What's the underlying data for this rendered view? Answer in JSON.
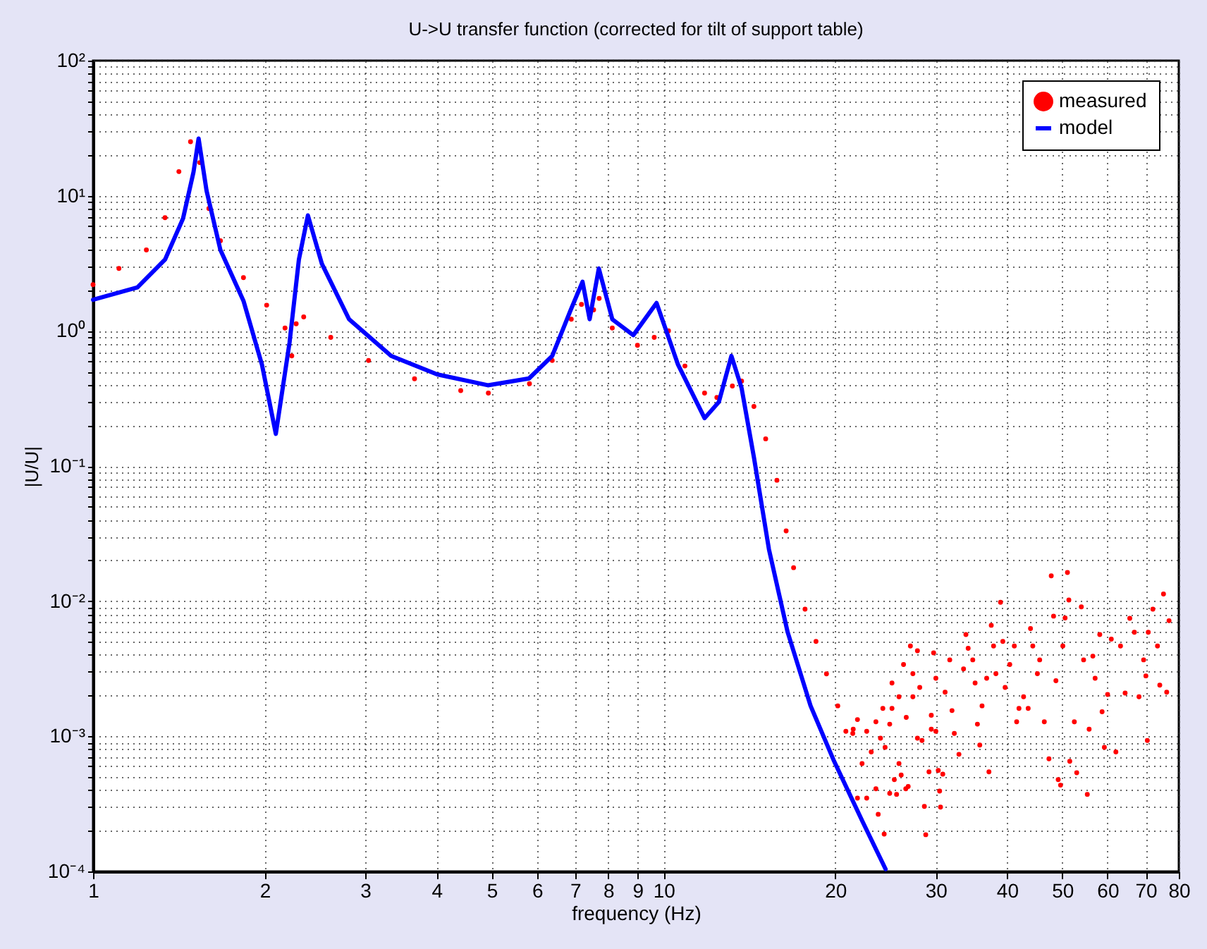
{
  "chart_data": {
    "type": "line",
    "title": "U->U transfer function (corrected for tilt of support table)",
    "xlabel": "frequency (Hz)",
    "ylabel": "|U/U|",
    "log": "xy",
    "grid": true,
    "legend": "top right",
    "xlim": [
      1,
      80
    ],
    "xticks": [
      1,
      2,
      3,
      4,
      5,
      6,
      7,
      8,
      9,
      10,
      20,
      30,
      40,
      50,
      60,
      70,
      80
    ],
    "ylim": [
      0.0001,
      100
    ],
    "yticks": [
      {
        "value": 0.0001,
        "label": "10⁻⁴"
      },
      {
        "value": 0.001,
        "label": "10⁻³"
      },
      {
        "value": 0.01,
        "label": "10⁻²"
      },
      {
        "value": 0.1,
        "label": "10⁻¹"
      },
      {
        "value": 1,
        "label": "10⁰"
      },
      {
        "value": 10,
        "label": "10¹"
      },
      {
        "value": 100,
        "label": "10²"
      }
    ],
    "series": [
      {
        "name": "measured",
        "type": "scatter",
        "marker": "circle",
        "color": "#ff0000",
        "x": [
          1.0,
          1.11,
          1.24,
          1.337,
          1.414,
          1.482,
          1.538,
          1.596,
          1.672,
          1.835,
          2.015,
          2.17,
          2.23,
          2.27,
          2.34,
          2.61,
          3.04,
          3.66,
          4.41,
          4.93,
          5.82,
          6.38,
          6.89,
          7.18,
          7.54,
          7.71,
          8.13,
          9.0,
          9.63,
          10.2,
          10.9,
          11.8,
          12.4,
          13.2,
          13.7,
          14.4,
          15.1,
          15.8,
          16.4,
          16.9,
          17.7,
          18.5,
          19.3,
          20.2,
          21.5,
          21.87,
          21.46,
          20.87,
          22.7,
          23.56,
          23.12,
          22.28,
          21.87,
          22.7,
          23.56,
          23.78,
          24.36,
          24.0,
          24.45,
          24.91,
          25.14,
          24.23,
          25.38,
          25.86,
          26.09,
          24.91,
          25.61,
          26.58,
          26.84,
          26.63,
          25.86,
          25.14,
          26.34,
          27.35,
          27.08,
          27.86,
          28.12,
          27.35,
          27.86,
          28.38,
          28.65,
          28.81,
          29.19,
          29.46,
          30.01,
          30.3,
          30.47,
          30.58,
          30.86,
          29.74,
          30.01,
          29.46,
          31.15,
          31.74,
          32.03,
          32.33,
          32.94,
          33.56,
          33.88,
          34.19,
          34.83,
          35.16,
          35.49,
          35.83,
          36.16,
          36.84,
          37.18,
          37.53,
          37.88,
          38.24,
          38.96,
          39.32,
          39.69,
          40.44,
          41.19,
          41.58,
          41.97,
          42.76,
          43.56,
          43.97,
          44.38,
          45.21,
          45.63,
          46.49,
          47.37,
          47.81,
          48.26,
          48.72,
          49.17,
          49.64,
          50.1,
          50.56,
          51.04,
          51.33,
          51.52,
          52.48,
          52.98,
          53.98,
          54.48,
          55.3,
          55.71,
          56.55,
          57.07,
          58.15,
          58.7,
          59.24,
          60.02,
          60.92,
          62.06,
          63.23,
          64.42,
          65.64,
          66.87,
          68.13,
          69.41,
          70.05,
          70.46,
          70.72,
          72.05,
          73.41,
          74.09,
          75.21,
          76.19,
          76.91
        ],
        "values": [
          2.2,
          2.9,
          3.97,
          6.88,
          15.1,
          25.1,
          17.6,
          8.05,
          4.65,
          2.48,
          1.55,
          1.05,
          0.653,
          1.13,
          1.27,
          0.895,
          0.604,
          0.442,
          0.362,
          0.347,
          0.407,
          0.604,
          1.22,
          1.57,
          1.43,
          1.74,
          1.05,
          0.783,
          0.895,
          1.0,
          0.55,
          0.347,
          0.322,
          0.391,
          0.425,
          0.276,
          0.159,
          0.0785,
          0.0331,
          0.0177,
          0.00873,
          0.00504,
          0.0029,
          0.00168,
          0.00113,
          0.00133,
          0.00105,
          0.00109,
          0.00109,
          0.00128,
          0.000766,
          0.000629,
          0.000349,
          0.000349,
          0.000409,
          0.000265,
          0.000189,
          0.000969,
          0.000829,
          0.00123,
          0.00161,
          0.00161,
          0.000478,
          0.000629,
          0.000517,
          0.000378,
          0.000372,
          0.000409,
          0.000425,
          0.00138,
          0.00196,
          0.00248,
          0.0034,
          0.00291,
          0.00466,
          0.0043,
          0.0023,
          0.00196,
          0.000969,
          0.000932,
          0.000303,
          0.000187,
          0.000546,
          0.00113,
          0.00109,
          0.000559,
          0.000393,
          0.000299,
          0.000525,
          0.00414,
          0.00269,
          0.00143,
          0.00212,
          0.00368,
          0.00155,
          0.00105,
          0.000736,
          0.00315,
          0.00566,
          0.00448,
          0.00368,
          0.00248,
          0.00123,
          0.000862,
          0.00168,
          0.00269,
          0.000546,
          0.00663,
          0.00466,
          0.00291,
          0.00981,
          0.00504,
          0.0023,
          0.0034,
          0.00466,
          0.00128,
          0.00161,
          0.00196,
          0.00161,
          0.00627,
          0.00466,
          0.00291,
          0.00368,
          0.00128,
          0.000681,
          0.0154,
          0.00775,
          0.00258,
          0.000478,
          0.000435,
          0.00466,
          0.00751,
          0.0163,
          0.0102,
          0.000654,
          0.00128,
          0.000538,
          0.00907,
          0.00368,
          0.000372,
          0.00113,
          0.00392,
          0.00269,
          0.00566,
          0.00152,
          0.000829,
          0.00204,
          0.00524,
          0.000766,
          0.00466,
          0.00209,
          0.00746,
          0.00589,
          0.00196,
          0.00368,
          0.0028,
          0.000932,
          0.00589,
          0.00872,
          0.00466,
          0.00239,
          0.0113,
          0.00212,
          0.00717
        ]
      },
      {
        "name": "model",
        "color": "#0000ff",
        "x": [
          1.0,
          1.196,
          1.337,
          1.438,
          1.5,
          1.531,
          1.581,
          1.672,
          1.835,
          1.977,
          2.091,
          2.21,
          2.295,
          2.38,
          2.518,
          2.81,
          3.33,
          4.01,
          4.92,
          5.81,
          6.38,
          6.88,
          7.21,
          7.42,
          7.7,
          8.13,
          8.85,
          9.72,
          10.6,
          11.8,
          12.5,
          13.15,
          13.7,
          14.4,
          15.3,
          16.5,
          18.1,
          19.9,
          22.3,
          24.5
        ],
        "values": [
          1.7,
          2.1,
          3.37,
          6.8,
          15,
          26.5,
          10.9,
          3.97,
          1.67,
          0.563,
          0.173,
          0.82,
          3.37,
          7.16,
          3.14,
          1.22,
          0.653,
          0.477,
          0.396,
          0.445,
          0.653,
          1.44,
          2.31,
          1.22,
          2.9,
          1.22,
          0.93,
          1.61,
          0.563,
          0.226,
          0.298,
          0.653,
          0.378,
          0.116,
          0.0242,
          0.00589,
          0.00168,
          0.000655,
          0.000236,
          0.000104
        ]
      }
    ]
  }
}
